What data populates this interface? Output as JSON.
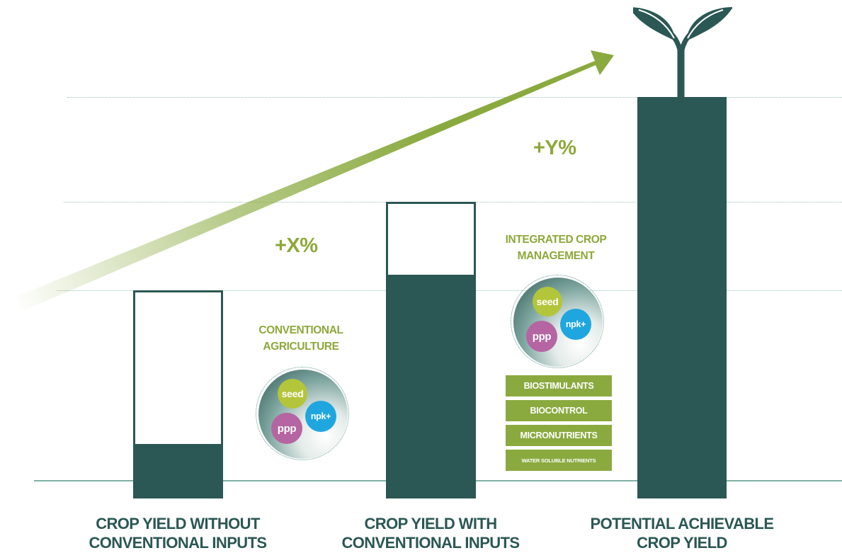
{
  "colors": {
    "bar_dark": "#2b5754",
    "accent_green": "#8da83a",
    "tag_green": "#8aaa3f",
    "seed_color": "#b3c53b",
    "npk_color": "#20a6de",
    "ppp_color": "#b565a2"
  },
  "bars": [
    {
      "label_line1": "CROP YIELD WITHOUT",
      "label_line2": "CONVENTIONAL INPUTS",
      "level": 0.25
    },
    {
      "label_line1": "CROP YIELD WITH",
      "label_line2": "CONVENTIONAL INPUTS",
      "level": 0.75
    },
    {
      "label_line1": "POTENTIAL ACHIEVABLE",
      "label_line2": "CROP YIELD",
      "level": 1.0
    }
  ],
  "gains": {
    "x": "+X%",
    "y": "+Y%"
  },
  "conventional": {
    "title_line1": "CONVENTIONAL",
    "title_line2": "AGRICULTURE",
    "inputs": {
      "seed": "seed",
      "npk": "npk+",
      "ppp": "ppp"
    }
  },
  "integrated": {
    "title_line1": "INTEGRATED CROP",
    "title_line2": "MANAGEMENT",
    "inputs": {
      "seed": "seed",
      "npk": "npk+",
      "ppp": "ppp"
    },
    "extras": [
      "BIOSTIMULANTS",
      "BIOCONTROL",
      "MICRONUTRIENTS",
      "WATER SOLUBLE NUTRIENTS"
    ]
  },
  "icons": [
    "growth-arrow-icon",
    "sprout-icon"
  ]
}
